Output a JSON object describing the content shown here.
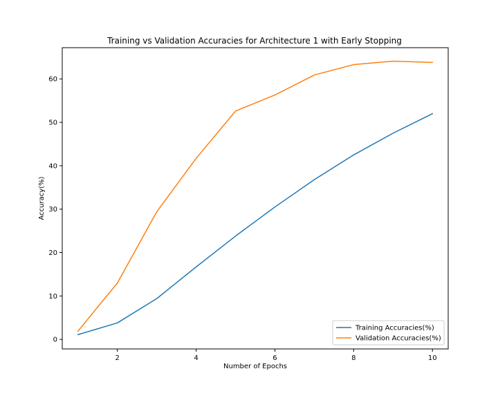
{
  "chart_data": {
    "type": "line",
    "title": "Training vs Validation Accuracies for Architecture 1 with Early Stopping",
    "xlabel": "Number of Epochs",
    "ylabel": "Accuracy(%)",
    "x": [
      1,
      2,
      3,
      4,
      5,
      6,
      7,
      8,
      9,
      10
    ],
    "xlim": [
      0.6,
      10.4
    ],
    "ylim": [
      -2.2,
      67.2
    ],
    "xticks": [
      2,
      4,
      6,
      8,
      10
    ],
    "yticks": [
      0,
      10,
      20,
      30,
      40,
      50,
      60
    ],
    "grid": false,
    "legend_position": "lower right",
    "series": [
      {
        "name": "Training Accuracies(%)",
        "color": "#1f77b4",
        "values": [
          1.1,
          3.8,
          9.4,
          16.7,
          23.8,
          30.5,
          36.8,
          42.5,
          47.5,
          52.0
        ]
      },
      {
        "name": "Validation Accuracies(%)",
        "color": "#ff7f0e",
        "values": [
          1.9,
          13.0,
          29.4,
          41.7,
          52.6,
          56.3,
          60.9,
          63.3,
          64.1,
          63.8
        ]
      }
    ]
  }
}
